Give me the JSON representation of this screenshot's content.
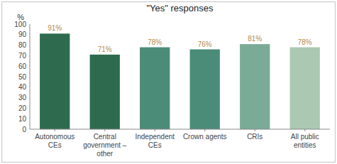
{
  "chart_data": {
    "type": "bar",
    "title": "\"Yes\" responses",
    "categories": [
      "Autonomous\nCEs",
      "Central\ngovernment –\nother",
      "Independent\nCEs",
      "Crown agents",
      "CRIs",
      "All public\nentities"
    ],
    "values": [
      91,
      71,
      78,
      76,
      81,
      78
    ],
    "value_labels": [
      "91%",
      "71%",
      "78%",
      "76%",
      "81%",
      "78%"
    ],
    "colors": [
      "#2e6b4e",
      "#2e6b4e",
      "#4a8c78",
      "#4a8c78",
      "#7aab96",
      "#aac9b2"
    ],
    "ylabel": "%",
    "ylim": [
      0,
      100
    ],
    "yticks": [
      0,
      10,
      20,
      30,
      40,
      50,
      60,
      70,
      80,
      90,
      100
    ],
    "data_labels": true,
    "grid": false
  }
}
